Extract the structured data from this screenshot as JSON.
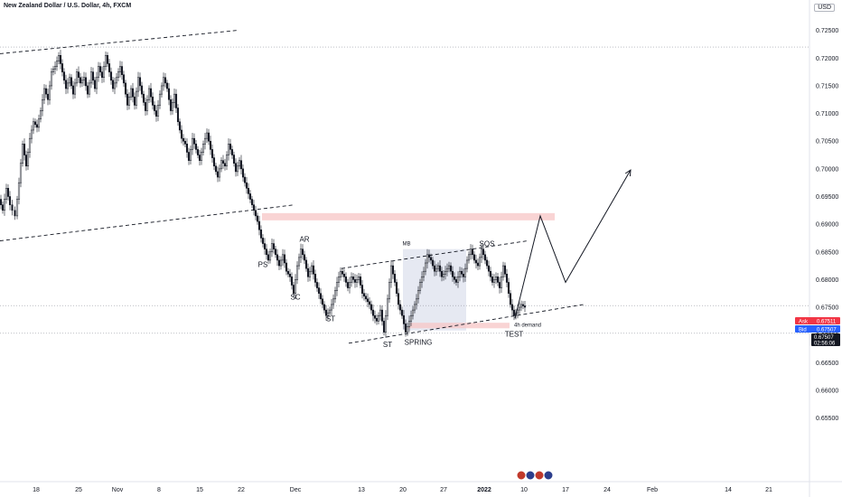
{
  "header": {
    "title": "New Zealand Dollar / U.S. Dollar, 4h, FXCM",
    "currency": "USD"
  },
  "price_tags": {
    "ask_label": "Ask",
    "ask_value": "0.67511",
    "bid_label": "Bid",
    "bid_value": "0.67507",
    "last_value": "0.67507",
    "countdown": "02:56:06",
    "ask_color": "#f23645",
    "bid_color": "#2962ff",
    "last_color": "#131722"
  },
  "chart_data": {
    "type": "candlestick",
    "ylim": [
      0.6435,
      0.7305
    ],
    "y_ticks": [
      "0.72500",
      "0.72000",
      "0.71500",
      "0.71000",
      "0.70500",
      "0.70000",
      "0.69500",
      "0.69000",
      "0.68500",
      "0.68000",
      "0.67500",
      "0.67000",
      "0.66500",
      "0.66000",
      "0.65500"
    ],
    "x_ticks": [
      "18",
      "25",
      "Nov",
      "8",
      "15",
      "22",
      "Dec",
      "13",
      "20",
      "27",
      "2022",
      "10",
      "17",
      "24",
      "Feb",
      "14",
      "21"
    ],
    "x_ticks_bold": [
      "2022"
    ],
    "grid": false,
    "series_path": [
      [
        0,
        0.6945
      ],
      [
        4,
        0.6925
      ],
      [
        8,
        0.6965
      ],
      [
        12,
        0.6935
      ],
      [
        18,
        0.6915
      ],
      [
        22,
        0.6975
      ],
      [
        26,
        0.7045
      ],
      [
        30,
        0.7005
      ],
      [
        34,
        0.7055
      ],
      [
        38,
        0.7085
      ],
      [
        42,
        0.7075
      ],
      [
        46,
        0.7105
      ],
      [
        50,
        0.7145
      ],
      [
        54,
        0.7125
      ],
      [
        58,
        0.7175
      ],
      [
        62,
        0.7185
      ],
      [
        66,
        0.7205
      ],
      [
        70,
        0.7175
      ],
      [
        74,
        0.7145
      ],
      [
        78,
        0.7165
      ],
      [
        82,
        0.7135
      ],
      [
        86,
        0.7175
      ],
      [
        90,
        0.7155
      ],
      [
        94,
        0.7165
      ],
      [
        98,
        0.7135
      ],
      [
        102,
        0.7175
      ],
      [
        106,
        0.7145
      ],
      [
        110,
        0.7185
      ],
      [
        114,
        0.7165
      ],
      [
        118,
        0.7205
      ],
      [
        122,
        0.7175
      ],
      [
        126,
        0.7145
      ],
      [
        130,
        0.7165
      ],
      [
        134,
        0.7185
      ],
      [
        138,
        0.7155
      ],
      [
        142,
        0.7115
      ],
      [
        146,
        0.7145
      ],
      [
        150,
        0.7115
      ],
      [
        154,
        0.7165
      ],
      [
        158,
        0.7135
      ],
      [
        162,
        0.7105
      ],
      [
        166,
        0.7145
      ],
      [
        170,
        0.7115
      ],
      [
        174,
        0.7095
      ],
      [
        178,
        0.7135
      ],
      [
        182,
        0.7165
      ],
      [
        186,
        0.7145
      ],
      [
        190,
        0.7105
      ],
      [
        194,
        0.7135
      ],
      [
        198,
        0.7085
      ],
      [
        202,
        0.7055
      ],
      [
        206,
        0.7045
      ],
      [
        210,
        0.7015
      ],
      [
        214,
        0.7055
      ],
      [
        218,
        0.7035
      ],
      [
        222,
        0.7015
      ],
      [
        226,
        0.7045
      ],
      [
        230,
        0.7065
      ],
      [
        234,
        0.7035
      ],
      [
        238,
        0.7005
      ],
      [
        242,
        0.6985
      ],
      [
        246,
        0.7015
      ],
      [
        250,
        0.7005
      ],
      [
        254,
        0.7045
      ],
      [
        258,
        0.7025
      ],
      [
        262,
        0.6995
      ],
      [
        266,
        0.7015
      ],
      [
        270,
        0.6985
      ],
      [
        274,
        0.6965
      ],
      [
        278,
        0.6945
      ],
      [
        282,
        0.6925
      ],
      [
        286,
        0.6905
      ],
      [
        290,
        0.6875
      ],
      [
        294,
        0.6855
      ],
      [
        298,
        0.6835
      ],
      [
        302,
        0.6865
      ],
      [
        306,
        0.6845
      ],
      [
        310,
        0.6825
      ],
      [
        314,
        0.6845
      ],
      [
        318,
        0.6815
      ],
      [
        322,
        0.6805
      ],
      [
        326,
        0.6775
      ],
      [
        330,
        0.6825
      ],
      [
        334,
        0.6855
      ],
      [
        338,
        0.6835
      ],
      [
        342,
        0.6805
      ],
      [
        346,
        0.6825
      ],
      [
        350,
        0.6795
      ],
      [
        354,
        0.6775
      ],
      [
        358,
        0.6755
      ],
      [
        362,
        0.6735
      ],
      [
        366,
        0.6745
      ],
      [
        370,
        0.6765
      ],
      [
        374,
        0.6795
      ],
      [
        378,
        0.6815
      ],
      [
        382,
        0.6805
      ],
      [
        386,
        0.6785
      ],
      [
        390,
        0.6805
      ],
      [
        394,
        0.6795
      ],
      [
        398,
        0.6805
      ],
      [
        402,
        0.6775
      ],
      [
        406,
        0.6765
      ],
      [
        410,
        0.6755
      ],
      [
        414,
        0.6735
      ],
      [
        418,
        0.6725
      ],
      [
        422,
        0.6745
      ],
      [
        426,
        0.6705
      ],
      [
        430,
        0.6765
      ],
      [
        434,
        0.6825
      ],
      [
        438,
        0.6795
      ],
      [
        442,
        0.6755
      ],
      [
        446,
        0.6735
      ],
      [
        450,
        0.6705
      ],
      [
        454,
        0.6725
      ],
      [
        458,
        0.6745
      ],
      [
        462,
        0.6765
      ],
      [
        466,
        0.6795
      ],
      [
        470,
        0.6815
      ],
      [
        474,
        0.6845
      ],
      [
        478,
        0.6835
      ],
      [
        482,
        0.6815
      ],
      [
        486,
        0.6825
      ],
      [
        490,
        0.6805
      ],
      [
        494,
        0.6815
      ],
      [
        498,
        0.6825
      ],
      [
        502,
        0.6805
      ],
      [
        506,
        0.6795
      ],
      [
        510,
        0.6815
      ],
      [
        514,
        0.6805
      ],
      [
        518,
        0.6835
      ],
      [
        522,
        0.6855
      ],
      [
        526,
        0.6835
      ],
      [
        530,
        0.6825
      ],
      [
        534,
        0.6855
      ],
      [
        538,
        0.6835
      ],
      [
        542,
        0.6815
      ],
      [
        546,
        0.6795
      ],
      [
        550,
        0.6805
      ],
      [
        554,
        0.6785
      ],
      [
        558,
        0.6825
      ],
      [
        562,
        0.6795
      ],
      [
        566,
        0.6755
      ],
      [
        570,
        0.6735
      ],
      [
        574,
        0.6745
      ],
      [
        578,
        0.6755
      ],
      [
        582,
        0.675
      ]
    ],
    "trend_lines": [
      {
        "x1": 0,
        "y1": 0.7208,
        "x2": 262,
        "y2": 0.725,
        "dashed": true
      },
      {
        "x1": 0,
        "y1": 0.687,
        "x2": 326,
        "y2": 0.6935,
        "dashed": true
      },
      {
        "x1": 378,
        "y1": 0.682,
        "x2": 584,
        "y2": 0.687,
        "dashed": true
      },
      {
        "x1": 386,
        "y1": 0.6685,
        "x2": 646,
        "y2": 0.6755,
        "dashed": true
      }
    ],
    "projection_path": [
      [
        570,
        0.673
      ],
      [
        598,
        0.6915
      ],
      [
        626,
        0.6795
      ],
      [
        698,
        0.6998
      ]
    ],
    "h_lines": [
      0.722,
      0.6753,
      0.6703
    ],
    "zones": [
      {
        "x1": 290,
        "x2": 614,
        "y1": 0.6907,
        "y2": 0.692,
        "color": "#f7c5c5"
      },
      {
        "x1": 446,
        "x2": 516,
        "y1": 0.6708,
        "y2": 0.6855,
        "color": "#dde1ee"
      },
      {
        "x1": 452,
        "x2": 564,
        "y1": 0.6712,
        "y2": 0.6722,
        "color": "#f7c5c5"
      }
    ],
    "annotations": [
      {
        "text": "PS",
        "x": 291,
        "y": 0.6823,
        "size": "md"
      },
      {
        "text": "AR",
        "x": 337,
        "y": 0.6868,
        "size": "md"
      },
      {
        "text": "SC",
        "x": 327,
        "y": 0.6764,
        "size": "md"
      },
      {
        "text": "ST",
        "x": 366,
        "y": 0.6725,
        "size": "md"
      },
      {
        "text": "ST",
        "x": 429,
        "y": 0.6678,
        "size": "md"
      },
      {
        "text": "SPRING",
        "x": 463,
        "y": 0.6682,
        "size": "md"
      },
      {
        "text": "MB",
        "x": 450,
        "y": 0.6862,
        "size": "sm"
      },
      {
        "text": "SOS",
        "x": 539,
        "y": 0.686,
        "size": "md"
      },
      {
        "text": "TEST",
        "x": 569,
        "y": 0.6697,
        "size": "md"
      },
      {
        "text": "4h demand",
        "x": 584,
        "y": 0.6715,
        "size": "sm"
      }
    ]
  }
}
